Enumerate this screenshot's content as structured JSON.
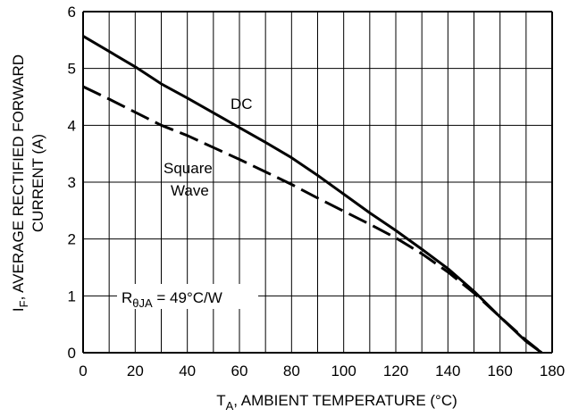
{
  "chart_data": {
    "type": "line",
    "xlabel": {
      "main": "T",
      "sub": "A",
      "rest": ", AMBIENT TEMPERATURE (°C)"
    },
    "ylabel": {
      "line1_main": "I",
      "line1_sub": "F",
      "line1_rest": ", AVERAGE RECTIFIED FORWARD",
      "line2": "CURRENT (A)"
    },
    "xlim": [
      0,
      180
    ],
    "ylim": [
      0,
      6
    ],
    "x_ticks": [
      0,
      20,
      40,
      60,
      80,
      100,
      120,
      140,
      160,
      180
    ],
    "y_ticks": [
      0,
      1,
      2,
      3,
      4,
      5,
      6
    ],
    "x_minor_grid_step": 10,
    "y_grid_step": 1,
    "grid": true,
    "series": [
      {
        "name": "DC",
        "style": "solid",
        "x": [
          0,
          20,
          30,
          40,
          50,
          60,
          70,
          80,
          90,
          100,
          110,
          120,
          130,
          140,
          150,
          160,
          170,
          176
        ],
        "y": [
          5.57,
          5.03,
          4.73,
          4.48,
          4.22,
          3.96,
          3.7,
          3.43,
          3.12,
          2.79,
          2.46,
          2.15,
          1.82,
          1.48,
          1.08,
          0.63,
          0.2,
          0.0
        ]
      },
      {
        "name": "Square\nWave",
        "label_lines": [
          "Square",
          "Wave"
        ],
        "style": "dashed",
        "x": [
          0,
          10,
          20,
          30,
          40,
          50,
          60,
          70,
          80,
          90,
          100,
          110,
          120,
          130,
          140,
          150,
          160,
          170,
          176
        ],
        "y": [
          4.68,
          4.46,
          4.23,
          4.0,
          3.82,
          3.61,
          3.4,
          3.18,
          2.96,
          2.72,
          2.49,
          2.26,
          2.02,
          1.74,
          1.42,
          1.05,
          0.63,
          0.22,
          0.0
        ]
      }
    ],
    "annotation": {
      "main": "R",
      "sub": "θJA",
      "rest": " = 49°C/W"
    },
    "colors": {
      "line": "#000000",
      "grid": "#000000",
      "background": "#ffffff"
    }
  }
}
